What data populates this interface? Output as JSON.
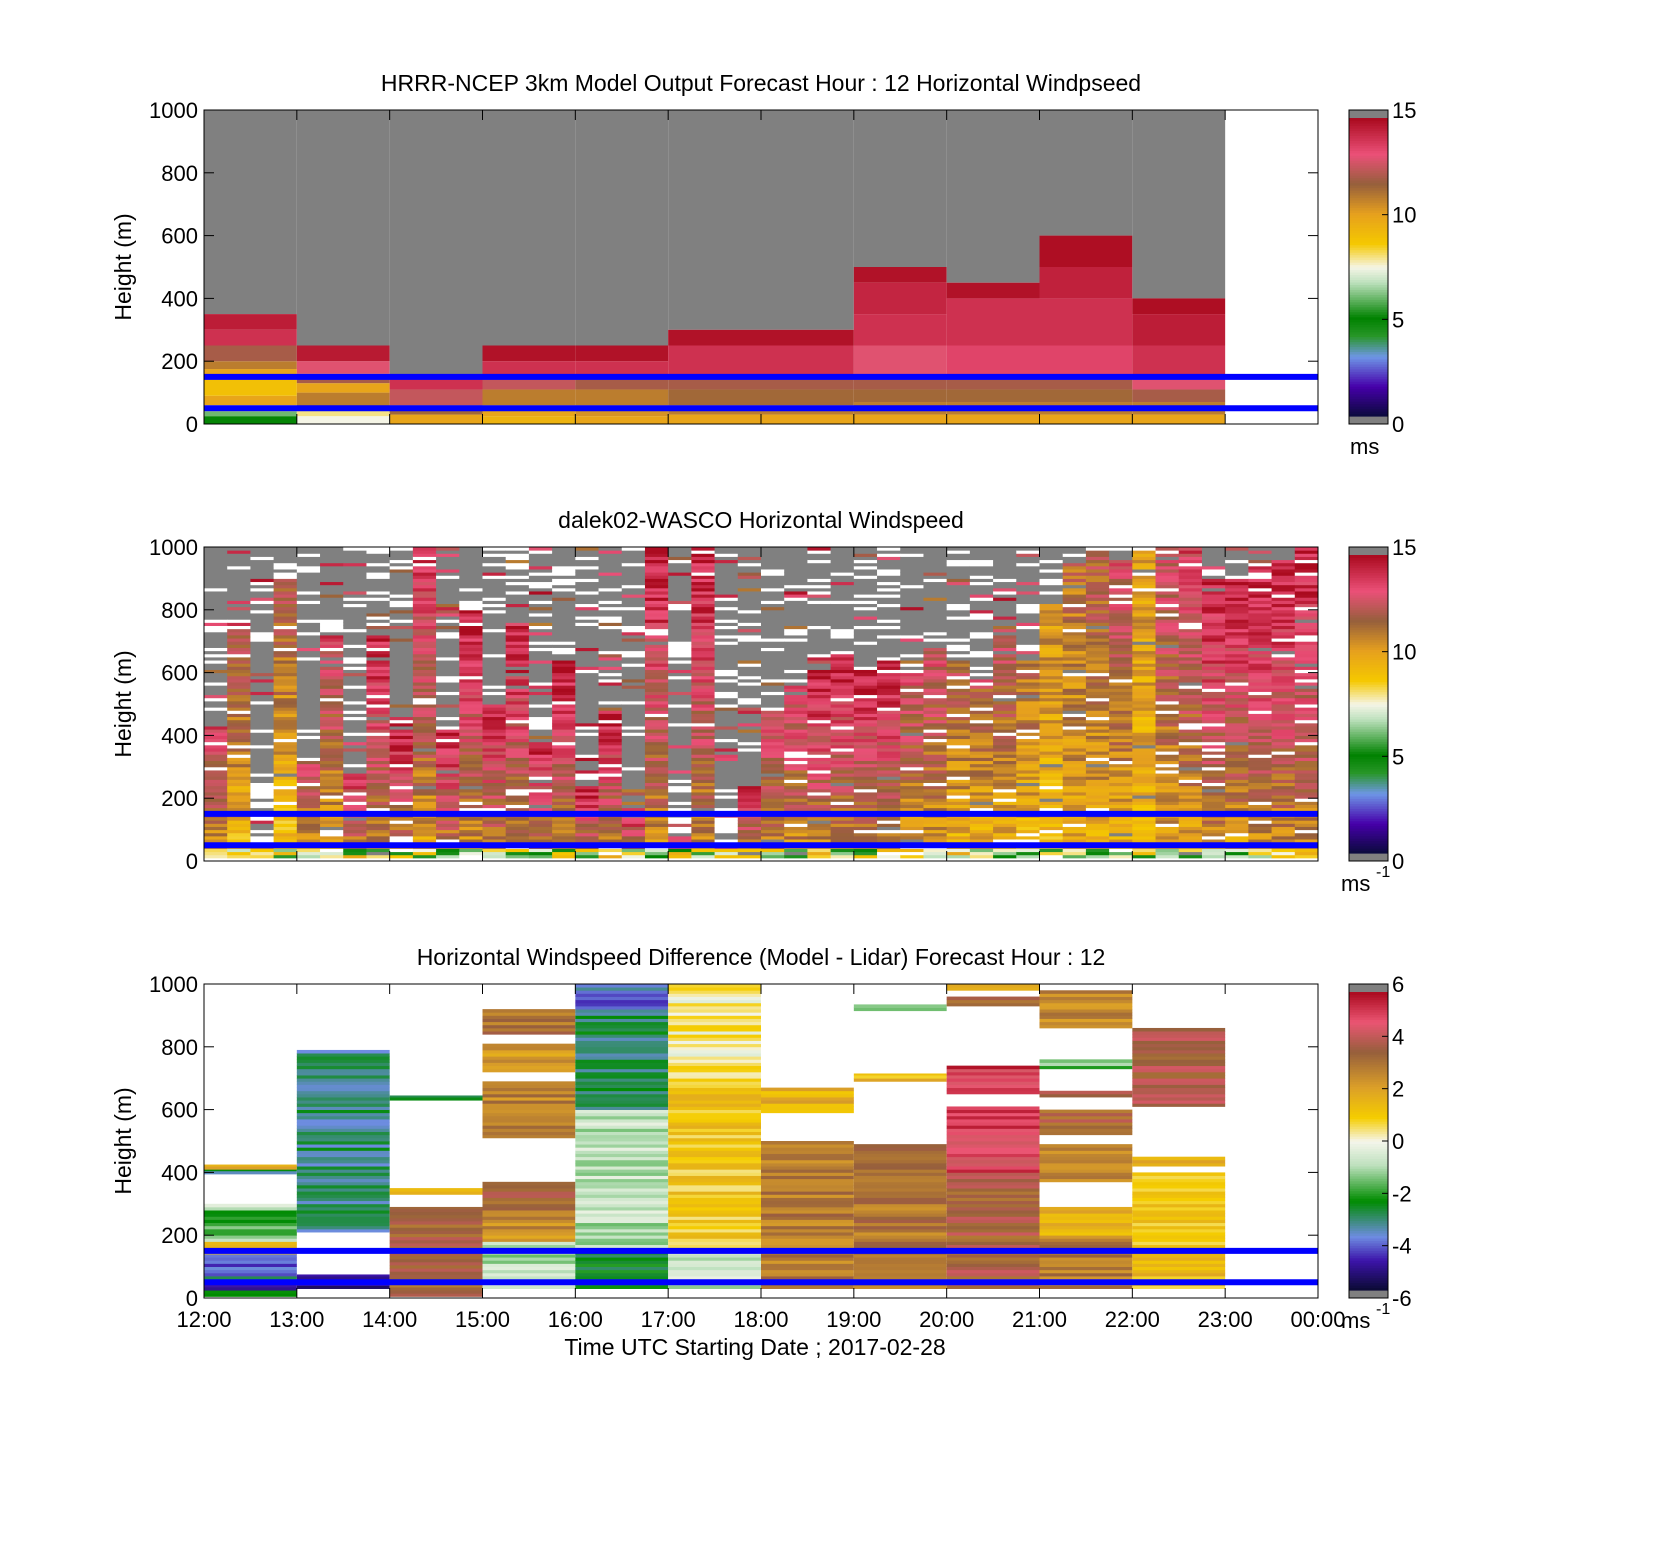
{
  "chart_data": [
    {
      "type": "heatmap",
      "title": "HRRR-NCEP 3km Model Output   Forecast Hour : 12 Horizontal Windpseed",
      "ylabel": "Height (m)",
      "ylim": [
        0,
        1000
      ],
      "yticks": [
        "0",
        "200",
        "400",
        "600",
        "800",
        "1000"
      ],
      "xlim_hours": [
        12,
        24
      ],
      "colorbar": {
        "min": 0,
        "max": 15,
        "ticks": [
          "0",
          "5",
          "10",
          "15"
        ],
        "unit": "ms",
        "unit_sup": "",
        "palette": "speed"
      },
      "reference_lines_m": [
        50,
        150
      ],
      "columns": [
        {
          "x0": "12:00",
          "x1": "13:00",
          "top": 350,
          "layers": [
            [
              0,
              25,
              5
            ],
            [
              25,
              40,
              6
            ],
            [
              40,
              60,
              8
            ],
            [
              60,
              90,
              10
            ],
            [
              90,
              145,
              9
            ],
            [
              145,
              175,
              10
            ],
            [
              175,
              200,
              11
            ],
            [
              200,
              250,
              12
            ],
            [
              250,
              300,
              14
            ],
            [
              300,
              350,
              14.5
            ]
          ]
        },
        {
          "x0": "13:00",
          "x1": "14:00",
          "top": 250,
          "layers": [
            [
              0,
              25,
              7.5
            ],
            [
              25,
              45,
              8
            ],
            [
              45,
              100,
              11
            ],
            [
              100,
              130,
              10
            ],
            [
              130,
              160,
              12
            ],
            [
              160,
              200,
              13
            ],
            [
              200,
              250,
              14.6
            ]
          ]
        },
        {
          "x0": "14:00",
          "x1": "15:00",
          "top": 150,
          "layers": [
            [
              0,
              30,
              10
            ],
            [
              30,
              60,
              11.5
            ],
            [
              60,
              110,
              12.5
            ],
            [
              110,
              150,
              14
            ]
          ]
        },
        {
          "x0": "15:00",
          "x1": "16:00",
          "top": 250,
          "layers": [
            [
              0,
              25,
              9.5
            ],
            [
              25,
              60,
              10
            ],
            [
              60,
              110,
              11
            ],
            [
              110,
              150,
              12.5
            ],
            [
              150,
              200,
              14
            ],
            [
              200,
              250,
              14.8
            ]
          ]
        },
        {
          "x0": "16:00",
          "x1": "17:00",
          "top": 250,
          "layers": [
            [
              0,
              25,
              10
            ],
            [
              25,
              60,
              10.5
            ],
            [
              60,
              110,
              11
            ],
            [
              110,
              150,
              12
            ],
            [
              150,
              200,
              14
            ],
            [
              200,
              250,
              14.8
            ]
          ]
        },
        {
          "x0": "17:00",
          "x1": "18:00",
          "top": 300,
          "layers": [
            [
              0,
              30,
              10
            ],
            [
              30,
              60,
              11
            ],
            [
              60,
              110,
              11.5
            ],
            [
              110,
              150,
              12
            ],
            [
              150,
              250,
              14
            ],
            [
              250,
              300,
              14.8
            ]
          ]
        },
        {
          "x0": "18:00",
          "x1": "19:00",
          "top": 300,
          "layers": [
            [
              0,
              30,
              10
            ],
            [
              30,
              60,
              11
            ],
            [
              60,
              110,
              11.5
            ],
            [
              110,
              150,
              12
            ],
            [
              150,
              250,
              14
            ],
            [
              250,
              300,
              14.8
            ]
          ]
        },
        {
          "x0": "19:00",
          "x1": "20:00",
          "top": 500,
          "layers": [
            [
              0,
              30,
              10
            ],
            [
              30,
              70,
              11
            ],
            [
              70,
              110,
              11.5
            ],
            [
              110,
              150,
              12
            ],
            [
              150,
              250,
              13
            ],
            [
              250,
              350,
              14
            ],
            [
              350,
              450,
              14.3
            ],
            [
              450,
              500,
              14.8
            ]
          ]
        },
        {
          "x0": "20:00",
          "x1": "21:00",
          "top": 450,
          "layers": [
            [
              0,
              30,
              10
            ],
            [
              30,
              70,
              11
            ],
            [
              70,
              110,
              11.5
            ],
            [
              110,
              150,
              12
            ],
            [
              150,
              250,
              13.5
            ],
            [
              250,
              400,
              14
            ],
            [
              400,
              450,
              14.8
            ]
          ]
        },
        {
          "x0": "21:00",
          "x1": "22:00",
          "top": 600,
          "layers": [
            [
              0,
              30,
              10
            ],
            [
              30,
              70,
              11
            ],
            [
              70,
              110,
              11.5
            ],
            [
              110,
              150,
              12
            ],
            [
              150,
              250,
              13.5
            ],
            [
              250,
              400,
              14
            ],
            [
              400,
              500,
              14.4
            ],
            [
              500,
              600,
              14.9
            ]
          ]
        },
        {
          "x0": "22:00",
          "x1": "23:00",
          "top": 400,
          "layers": [
            [
              0,
              30,
              10
            ],
            [
              30,
              70,
              11
            ],
            [
              70,
              110,
              12
            ],
            [
              110,
              150,
              13
            ],
            [
              150,
              250,
              14
            ],
            [
              250,
              350,
              14.5
            ],
            [
              350,
              400,
              14.9
            ]
          ]
        }
      ]
    },
    {
      "type": "heatmap",
      "title": "dalek02-WASCO  Horizontal Windspeed",
      "ylabel": "Height (m)",
      "ylim": [
        0,
        1000
      ],
      "yticks": [
        "0",
        "200",
        "400",
        "600",
        "800",
        "1000"
      ],
      "xlim_hours": [
        12,
        24
      ],
      "colorbar": {
        "min": 0,
        "max": 15,
        "ticks": [
          "0",
          "5",
          "10",
          "15"
        ],
        "unit": "ms",
        "unit_sup": "-1",
        "palette": "speed"
      },
      "reference_lines_m": [
        50,
        150
      ],
      "columns_per_hour": 4,
      "range_gate_m": 10,
      "valid_top_m": [
        430,
        750,
        55,
        900,
        330,
        720,
        280,
        720,
        420,
        1000,
        420,
        800,
        500,
        750,
        380,
        640,
        240,
        480,
        170,
        1000,
        80,
        1000,
        60,
        240,
        480,
        560,
        610,
        670,
        610,
        640,
        600,
        680,
        640,
        560,
        720,
        640,
        820,
        960,
        1000,
        960,
        1000,
        1000,
        1000,
        900,
        900,
        940,
        960,
        1000
      ],
      "speed_low_high": [
        [
          9.5,
          13.5
        ],
        [
          8.5,
          12.5
        ],
        [
          8,
          11
        ],
        [
          8.5,
          12
        ],
        [
          9,
          13
        ],
        [
          9,
          13.5
        ],
        [
          10,
          14
        ],
        [
          10,
          14.5
        ],
        [
          10,
          14.5
        ],
        [
          9.5,
          14
        ],
        [
          10,
          14.5
        ],
        [
          10,
          14.5
        ],
        [
          10,
          14.5
        ],
        [
          10,
          14.5
        ],
        [
          10,
          14.5
        ],
        [
          10,
          14.5
        ],
        [
          10,
          14.5
        ],
        [
          10,
          14.5
        ],
        [
          10,
          14.5
        ],
        [
          10,
          14.5
        ],
        [
          10,
          14.5
        ],
        [
          10,
          14.5
        ],
        [
          10,
          14.5
        ],
        [
          10,
          14.5
        ],
        [
          10,
          13.5
        ],
        [
          10,
          13.5
        ],
        [
          10,
          14.5
        ],
        [
          10,
          14.5
        ],
        [
          10,
          14.5
        ],
        [
          10,
          14.5
        ],
        [
          9.5,
          13
        ],
        [
          9.5,
          13
        ],
        [
          9,
          12
        ],
        [
          9,
          12
        ],
        [
          9,
          12.5
        ],
        [
          9,
          11.5
        ],
        [
          9,
          10.5
        ],
        [
          9.5,
          11.5
        ],
        [
          9.5,
          12
        ],
        [
          9,
          13
        ],
        [
          9,
          10.5
        ],
        [
          9.5,
          13
        ],
        [
          9.5,
          13.5
        ],
        [
          10,
          14.5
        ],
        [
          9.5,
          14.5
        ],
        [
          10,
          14.5
        ],
        [
          10,
          14.5
        ],
        [
          10,
          14.5
        ]
      ]
    },
    {
      "type": "heatmap",
      "title": "Horizontal Windspeed Difference (Model - Lidar) Forecast Hour : 12",
      "xlabel": "Time UTC  Starting Date ; 2017-02-28",
      "ylabel": "Height (m)",
      "ylim": [
        0,
        1000
      ],
      "yticks": [
        "0",
        "200",
        "400",
        "600",
        "800",
        "1000"
      ],
      "xticks": [
        "12:00",
        "13:00",
        "14:00",
        "15:00",
        "16:00",
        "17:00",
        "18:00",
        "19:00",
        "20:00",
        "21:00",
        "22:00",
        "23:00",
        "00:00"
      ],
      "xlim_hours": [
        12,
        24
      ],
      "colorbar": {
        "min": -6,
        "max": 6,
        "ticks": [
          "-6",
          "-4",
          "-2",
          "0",
          "2",
          "4",
          "6"
        ],
        "unit": "ms",
        "unit_sup": "-1",
        "palette": "diff"
      },
      "reference_lines_m": [
        50,
        150
      ],
      "blocks": [
        {
          "x0": "12:00",
          "x1": "13:00",
          "bands": [
            [
              5,
              25,
              -3
            ],
            [
              25,
              45,
              -4.5
            ],
            [
              45,
              70,
              -3
            ],
            [
              70,
              140,
              -4
            ],
            [
              140,
              180,
              1
            ],
            [
              180,
              230,
              -1.5
            ],
            [
              230,
              280,
              -2
            ],
            [
              280,
              300,
              -0.5
            ],
            [
              395,
              410,
              -3
            ],
            [
              410,
              425,
              1.5
            ]
          ]
        },
        {
          "x0": "13:00",
          "x1": "14:00",
          "bands": [
            [
              30,
              75,
              -5
            ],
            [
              210,
              790,
              -3.2
            ]
          ]
        },
        {
          "x0": "14:00",
          "x1": "15:00",
          "bands": [
            [
              5,
              290,
              3.5
            ],
            [
              330,
              350,
              2
            ],
            [
              630,
              645,
              -3
            ]
          ]
        },
        {
          "x0": "15:00",
          "x1": "16:00",
          "bands": [
            [
              30,
              70,
              -0.5
            ],
            [
              70,
              180,
              -1
            ],
            [
              180,
              280,
              2.5
            ],
            [
              280,
              370,
              3.5
            ],
            [
              510,
              690,
              2.8
            ],
            [
              720,
              810,
              2.2
            ],
            [
              840,
              920,
              3.3
            ]
          ]
        },
        {
          "x0": "16:00",
          "x1": "17:00",
          "bands": [
            [
              30,
              150,
              -2.7
            ],
            [
              150,
              600,
              -0.9
            ],
            [
              600,
              900,
              -3
            ],
            [
              900,
              1000,
              -4
            ]
          ]
        },
        {
          "x0": "17:00",
          "x1": "18:00",
          "bands": [
            [
              30,
              150,
              -0.7
            ],
            [
              150,
              700,
              1.1
            ],
            [
              700,
              1000,
              0.3
            ]
          ]
        },
        {
          "x0": "18:00",
          "x1": "19:00",
          "bands": [
            [
              30,
              500,
              3
            ],
            [
              590,
              670,
              1.7
            ]
          ]
        },
        {
          "x0": "19:00",
          "x1": "20:00",
          "bands": [
            [
              30,
              490,
              3.1
            ],
            [
              690,
              715,
              1.4
            ],
            [
              915,
              935,
              -1
            ]
          ]
        },
        {
          "x0": "20:00",
          "x1": "21:00",
          "bands": [
            [
              30,
              400,
              3.7
            ],
            [
              400,
              610,
              5
            ],
            [
              650,
              740,
              5.2
            ],
            [
              930,
              960,
              3.5
            ],
            [
              980,
              1000,
              1.5
            ]
          ]
        },
        {
          "x0": "21:00",
          "x1": "22:00",
          "bands": [
            [
              30,
              200,
              3
            ],
            [
              200,
              290,
              1.7
            ],
            [
              370,
              490,
              2.6
            ],
            [
              520,
              600,
              3.6
            ],
            [
              640,
              660,
              3.7
            ],
            [
              730,
              760,
              -1.5
            ],
            [
              860,
              980,
              2.8
            ]
          ]
        },
        {
          "x0": "22:00",
          "x1": "23:00",
          "bands": [
            [
              30,
              400,
              1.3
            ],
            [
              420,
              450,
              1.5
            ],
            [
              610,
              860,
              3.8
            ]
          ]
        }
      ]
    }
  ]
}
